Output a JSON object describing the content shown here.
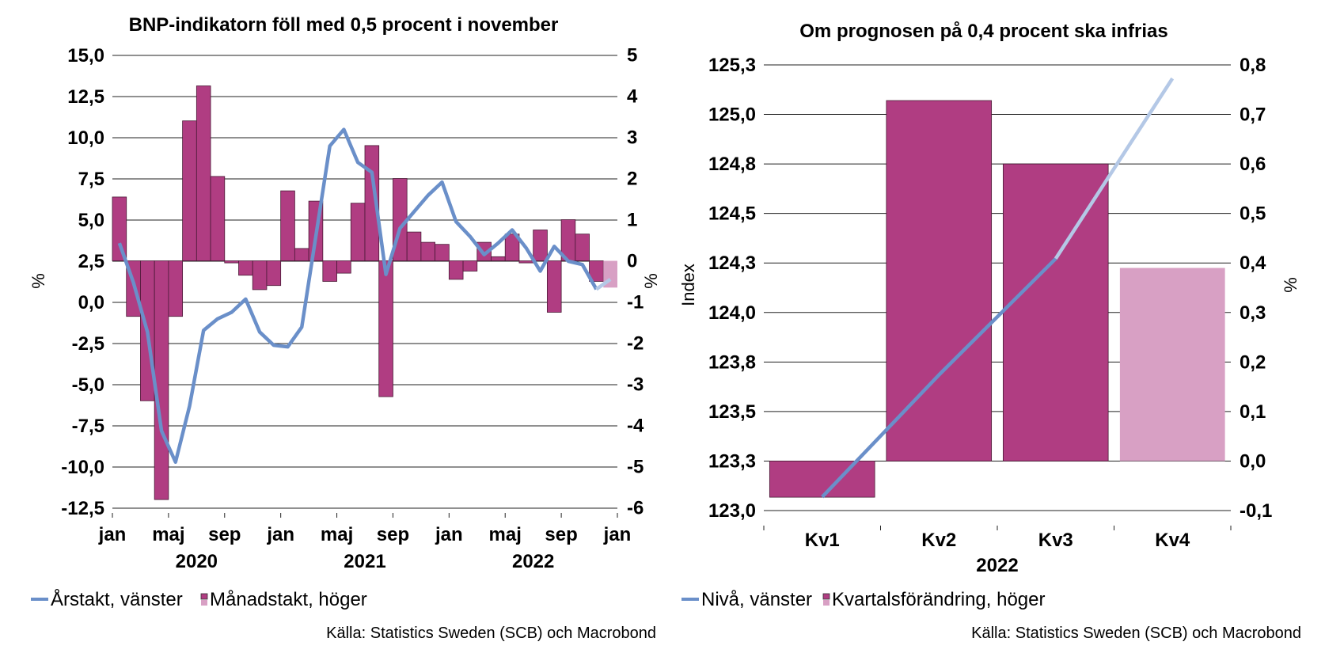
{
  "charts": [
    {
      "title": "BNP-indikatorn föll med 0,5 procent i november",
      "ylabel_left": "%",
      "ylabel_right": "%",
      "left_ticks": [
        "15,0",
        "12,5",
        "10,0",
        "7,5",
        "5,0",
        "2,5",
        "0,0",
        "-2,5",
        "-5,0",
        "-7,5",
        "-10,0",
        "-12,5"
      ],
      "right_ticks": [
        "5",
        "4",
        "3",
        "2",
        "1",
        "0",
        "-1",
        "-2",
        "-3",
        "-4",
        "-5",
        "-6"
      ],
      "x_ticks": [
        "jan",
        "maj",
        "sep",
        "jan",
        "maj",
        "sep",
        "jan",
        "maj",
        "sep",
        "jan"
      ],
      "x_years": [
        "2020",
        "2021",
        "2022"
      ],
      "legend": [
        {
          "label": "Årstakt, vänster",
          "color": "#6a8fc9"
        },
        {
          "label": "Månadstakt, höger",
          "color": "#b03d82",
          "forecast_color": "#d8a0c4"
        }
      ],
      "source": "Källa: Statistics Sweden (SCB) och Macrobond"
    },
    {
      "title": "Om prognosen på 0,4 procent ska infrias",
      "ylabel_left": "Index",
      "ylabel_right": "%",
      "left_ticks": [
        "125,3",
        "125,0",
        "124,8",
        "124,5",
        "124,3",
        "124,0",
        "123,8",
        "123,5",
        "123,3",
        "123,0"
      ],
      "right_ticks": [
        "0,8",
        "0,7",
        "0,6",
        "0,5",
        "0,4",
        "0,3",
        "0,2",
        "0,1",
        "0,0",
        "-0,1"
      ],
      "categories": [
        "Kv1",
        "Kv2",
        "Kv3",
        "Kv4"
      ],
      "x_year": "2022",
      "legend": [
        {
          "label": "Nivå, vänster",
          "color": "#6a8fc9"
        },
        {
          "label": "Kvartalsförändring, höger",
          "color": "#b03d82",
          "forecast_color": "#d8a0c4"
        }
      ],
      "source": "Källa: Statistics Sweden (SCB) och Macrobond"
    }
  ],
  "chart_data": [
    {
      "type": "bar",
      "title": "BNP-indikatorn föll med 0,5 procent i november",
      "x_start": "2020-01",
      "x_end": "2023-01",
      "ylim_left": [
        -13.75,
        15.0
      ],
      "ylim_right": [
        -6.5,
        5.0
      ],
      "series": [
        {
          "name": "Månadstakt, höger",
          "axis": "right",
          "type": "bar",
          "color": "#b03d82",
          "forecast_color": "#d8a0c4",
          "forecast_last": true,
          "values": [
            1.55,
            -1.35,
            -3.4,
            -5.8,
            -1.35,
            3.4,
            4.25,
            2.05,
            -0.05,
            -0.35,
            -0.7,
            -0.6,
            1.7,
            0.3,
            1.45,
            -0.5,
            -0.3,
            1.4,
            2.8,
            -3.3,
            2.0,
            0.7,
            0.45,
            0.4,
            -0.45,
            -0.25,
            0.45,
            0.1,
            0.65,
            -0.05,
            0.75,
            -1.25,
            1.0,
            0.65,
            -0.5,
            -0.65
          ]
        },
        {
          "name": "Årstakt, vänster",
          "axis": "left",
          "type": "line",
          "color": "#6a8fc9",
          "forecast_color": "#b4c8e6",
          "values": [
            3.6,
            1.2,
            -1.8,
            -7.8,
            -9.7,
            -6.3,
            -1.7,
            -1.0,
            -0.6,
            0.2,
            -1.8,
            -2.6,
            -2.7,
            -1.5,
            4.0,
            9.5,
            10.5,
            8.5,
            7.9,
            1.7,
            4.5,
            5.5,
            6.5,
            7.3,
            4.9,
            4.0,
            2.9,
            3.6,
            4.4,
            3.3,
            1.9,
            3.4,
            2.5,
            2.3,
            0.8,
            1.4
          ]
        }
      ]
    },
    {
      "type": "bar",
      "title": "Om prognosen på 0,4 procent ska infrias",
      "x_year": "2022",
      "categories": [
        "Kv1",
        "Kv2",
        "Kv3",
        "Kv4"
      ],
      "ylim_left": [
        123.0,
        125.3
      ],
      "ylim_right": [
        -0.1,
        0.8
      ],
      "series": [
        {
          "name": "Kvartalsförändring, höger",
          "axis": "right",
          "type": "bar",
          "color": "#b03d82",
          "forecast_color": "#d8a0c4",
          "forecast_last": true,
          "values": [
            -0.073,
            0.728,
            0.6,
            0.39
          ]
        },
        {
          "name": "Nivå, vänster",
          "axis": "left",
          "type": "line",
          "color": "#6a8fc9",
          "forecast_color": "#b4c8e6",
          "values": [
            123.07,
            123.7,
            124.3,
            125.23
          ]
        }
      ]
    }
  ]
}
